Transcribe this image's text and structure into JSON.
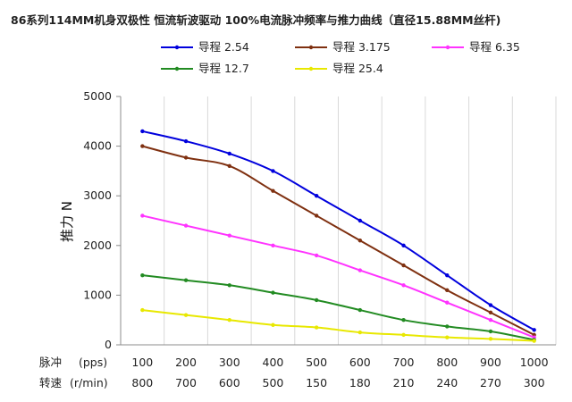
{
  "chart_data": {
    "type": "line",
    "title": "86系列114MM机身双极性 恒流斩波驱动 100%电流脉冲频率与推力曲线（直径15.88MM丝杆)",
    "ylabel": "推力 N",
    "xlabel": "",
    "x_row1_label": "脉冲",
    "x_row1_unit": "(pps)",
    "x_row2_label": "转速",
    "x_row2_unit": "(r/min)",
    "categories": [
      "100",
      "200",
      "300",
      "400",
      "500",
      "600",
      "700",
      "800",
      "900",
      "1000"
    ],
    "categories_row2": [
      "800",
      "700",
      "600",
      "500",
      "150",
      "180",
      "210",
      "240",
      "270",
      "300"
    ],
    "yticks": [
      "0",
      "1000",
      "2000",
      "3000",
      "4000",
      "5000"
    ],
    "ylim": [
      0,
      5000
    ],
    "grid": "vertical",
    "legend_position": "top",
    "series": [
      {
        "name": "导程 2.54",
        "color": "#0000dd",
        "values": [
          4300,
          4100,
          3850,
          3500,
          3000,
          2500,
          2000,
          1400,
          800,
          300
        ]
      },
      {
        "name": "导程 3.175",
        "color": "#7f3010",
        "values": [
          4000,
          3770,
          3600,
          3100,
          2600,
          2100,
          1600,
          1100,
          650,
          200
        ]
      },
      {
        "name": "导程 6.35",
        "color": "#ff33ff",
        "values": [
          2600,
          2400,
          2200,
          2000,
          1800,
          1500,
          1200,
          850,
          500,
          150
        ]
      },
      {
        "name": "导程 12.7",
        "color": "#228b22",
        "values": [
          1400,
          1300,
          1200,
          1050,
          900,
          700,
          500,
          370,
          270,
          100
        ]
      },
      {
        "name": "导程 25.4",
        "color": "#e8e800",
        "values": [
          700,
          600,
          500,
          400,
          350,
          250,
          200,
          150,
          120,
          80
        ]
      }
    ]
  }
}
